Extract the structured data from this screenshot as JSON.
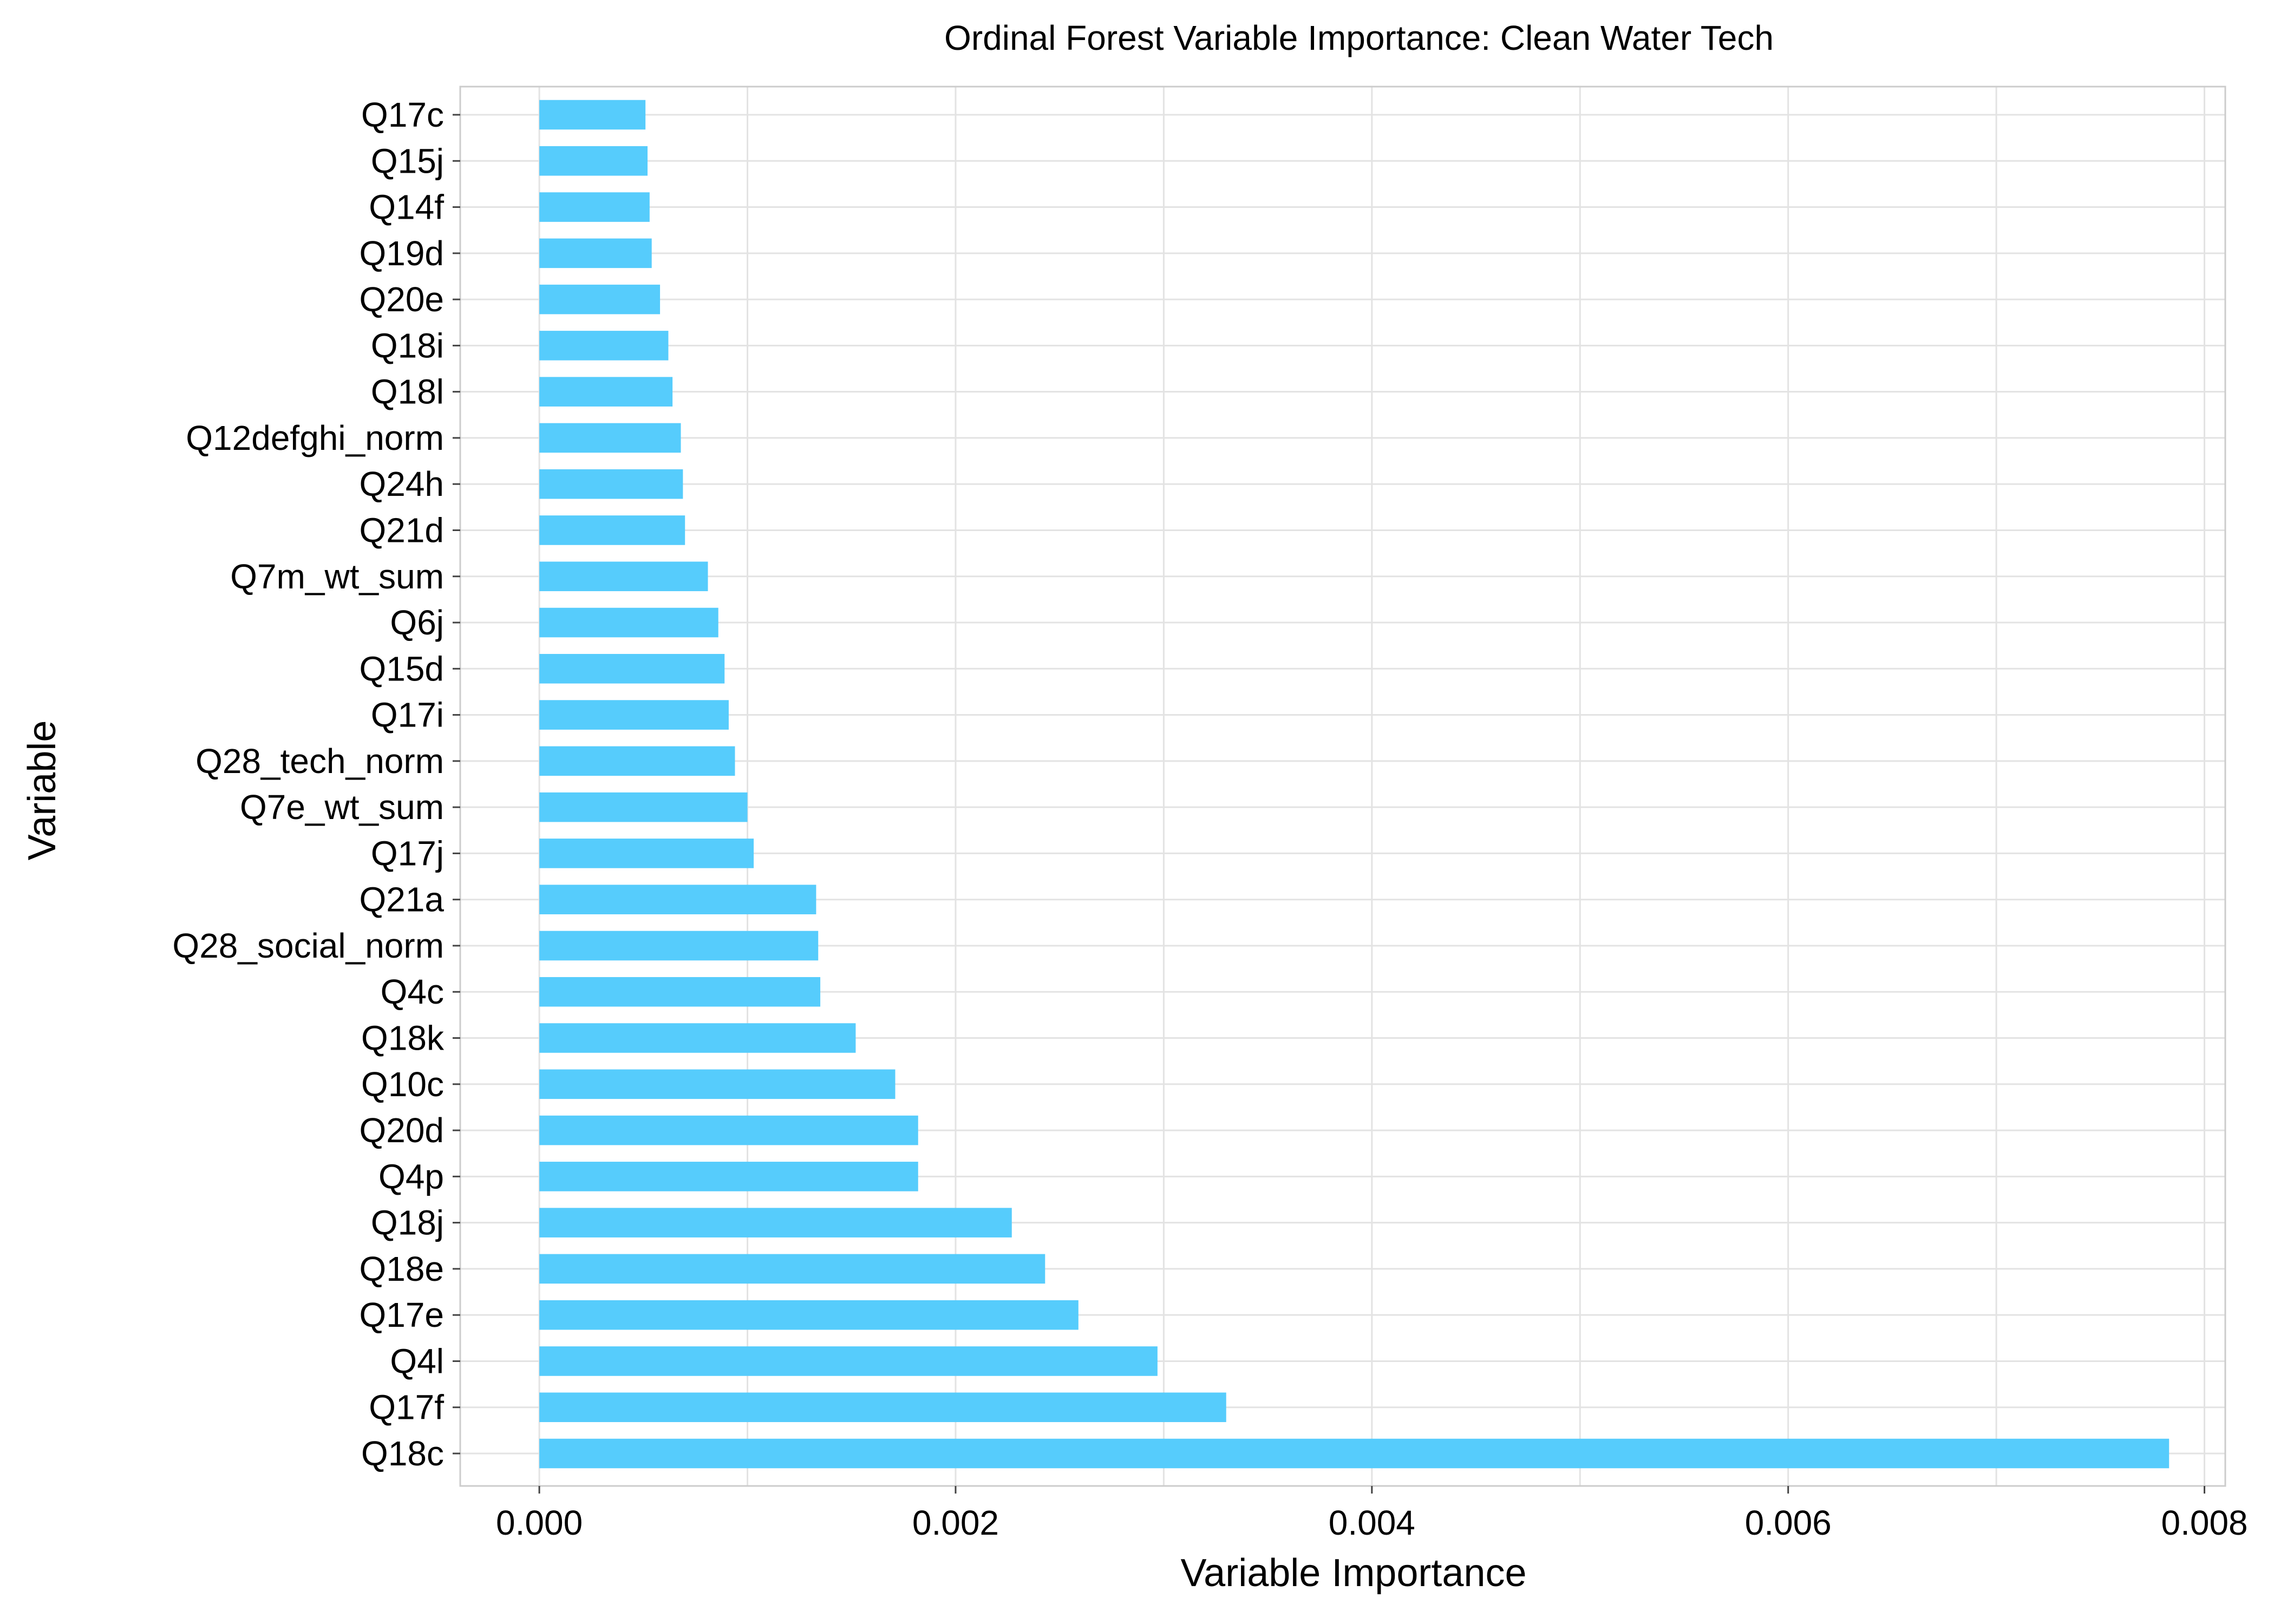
{
  "chart_data": {
    "type": "bar",
    "orientation": "horizontal",
    "title": "Ordinal Forest Variable Importance: Clean Water Tech",
    "xlabel": "Variable Importance",
    "ylabel": "Variable",
    "xlim": [
      -0.00038,
      0.0081
    ],
    "x_ticks": [
      0.0,
      0.002,
      0.004,
      0.006,
      0.008
    ],
    "x_tick_labels": [
      "0.000",
      "0.002",
      "0.004",
      "0.006",
      "0.008"
    ],
    "grid": true,
    "bar_color": "#56CCFC",
    "categories": [
      "Q17c",
      "Q15j",
      "Q14f",
      "Q19d",
      "Q20e",
      "Q18i",
      "Q18l",
      "Q12defghi_norm",
      "Q24h",
      "Q21d",
      "Q7m_wt_sum",
      "Q6j",
      "Q15d",
      "Q17i",
      "Q28_tech_norm",
      "Q7e_wt_sum",
      "Q17j",
      "Q21a",
      "Q28_social_norm",
      "Q4c",
      "Q18k",
      "Q10c",
      "Q20d",
      "Q4p",
      "Q18j",
      "Q18e",
      "Q17e",
      "Q4l",
      "Q17f",
      "Q18c"
    ],
    "values": [
      0.00051,
      0.00052,
      0.00053,
      0.00054,
      0.00058,
      0.00062,
      0.00064,
      0.00068,
      0.00069,
      0.0007,
      0.00081,
      0.00086,
      0.00089,
      0.00091,
      0.00094,
      0.001,
      0.00103,
      0.00133,
      0.00134,
      0.00135,
      0.00152,
      0.00171,
      0.00182,
      0.00182,
      0.00227,
      0.00243,
      0.00259,
      0.00297,
      0.0033,
      0.00783
    ]
  }
}
